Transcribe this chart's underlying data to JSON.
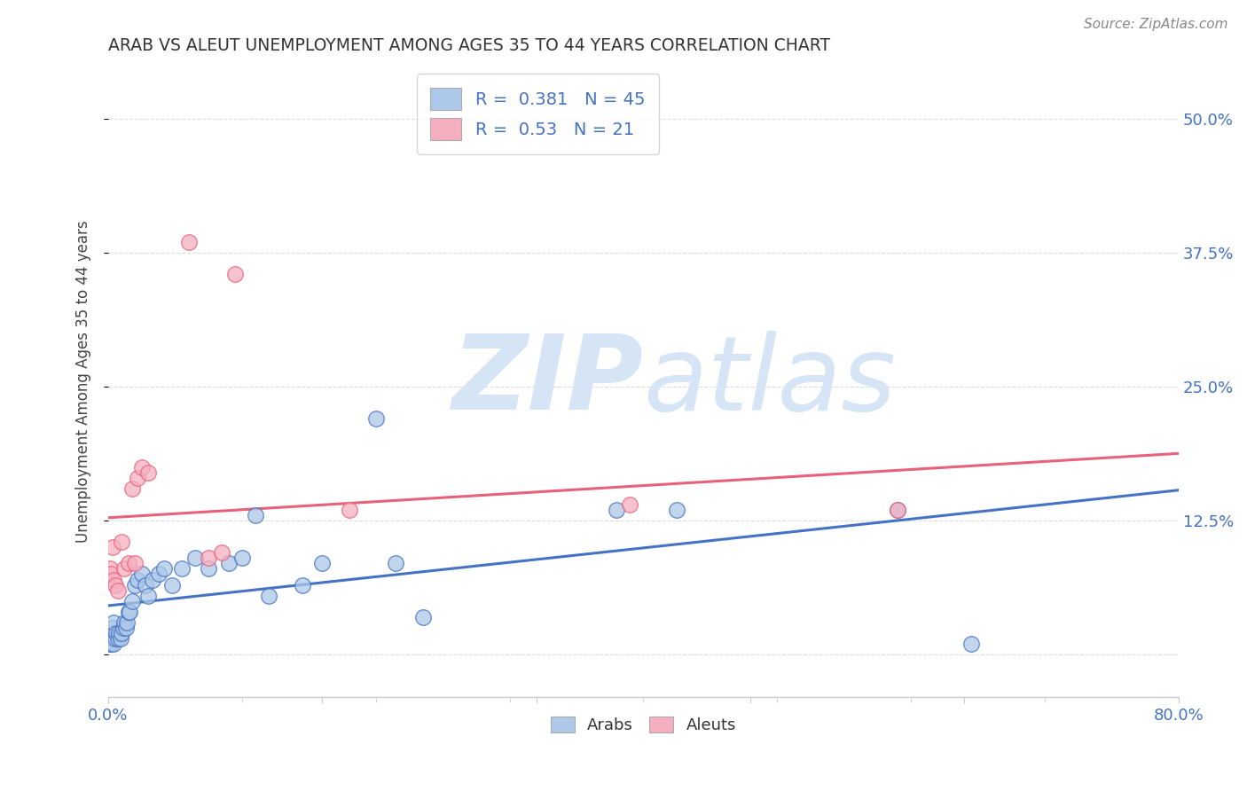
{
  "title": "ARAB VS ALEUT UNEMPLOYMENT AMONG AGES 35 TO 44 YEARS CORRELATION CHART",
  "source": "Source: ZipAtlas.com",
  "ylabel": "Unemployment Among Ages 35 to 44 years",
  "xlim": [
    0.0,
    0.8
  ],
  "ylim": [
    -0.04,
    0.55
  ],
  "yticks": [
    0.0,
    0.125,
    0.25,
    0.375,
    0.5
  ],
  "ytick_labels": [
    "",
    "12.5%",
    "25.0%",
    "37.5%",
    "50.0%"
  ],
  "arab_R": 0.381,
  "arab_N": 45,
  "aleut_R": 0.53,
  "aleut_N": 21,
  "arab_color": "#adc8e8",
  "aleut_color": "#f5afc0",
  "arab_line_color": "#4472c4",
  "aleut_line_color": "#e8607a",
  "watermark_zip": "ZIP",
  "watermark_atlas": "atlas",
  "watermark_color": "#d5e5f5",
  "background_color": "#ffffff",
  "arab_x": [
    0.001,
    0.002,
    0.002,
    0.003,
    0.003,
    0.004,
    0.004,
    0.005,
    0.006,
    0.007,
    0.008,
    0.009,
    0.01,
    0.011,
    0.012,
    0.013,
    0.014,
    0.015,
    0.016,
    0.018,
    0.02,
    0.022,
    0.025,
    0.028,
    0.03,
    0.033,
    0.038,
    0.042,
    0.048,
    0.055,
    0.065,
    0.075,
    0.09,
    0.1,
    0.11,
    0.12,
    0.145,
    0.16,
    0.2,
    0.215,
    0.235,
    0.38,
    0.425,
    0.59,
    0.645
  ],
  "arab_y": [
    0.01,
    0.01,
    0.02,
    0.015,
    0.025,
    0.01,
    0.03,
    0.015,
    0.02,
    0.015,
    0.02,
    0.015,
    0.02,
    0.025,
    0.03,
    0.025,
    0.03,
    0.04,
    0.04,
    0.05,
    0.065,
    0.07,
    0.075,
    0.065,
    0.055,
    0.07,
    0.075,
    0.08,
    0.065,
    0.08,
    0.09,
    0.08,
    0.085,
    0.09,
    0.13,
    0.055,
    0.065,
    0.085,
    0.22,
    0.085,
    0.035,
    0.135,
    0.135,
    0.135,
    0.01
  ],
  "aleut_x": [
    0.001,
    0.002,
    0.003,
    0.004,
    0.005,
    0.007,
    0.01,
    0.012,
    0.015,
    0.018,
    0.02,
    0.022,
    0.025,
    0.03,
    0.06,
    0.075,
    0.085,
    0.095,
    0.18,
    0.39,
    0.59
  ],
  "aleut_y": [
    0.08,
    0.075,
    0.1,
    0.07,
    0.065,
    0.06,
    0.105,
    0.08,
    0.085,
    0.155,
    0.085,
    0.165,
    0.175,
    0.17,
    0.385,
    0.09,
    0.095,
    0.355,
    0.135,
    0.14,
    0.135
  ]
}
